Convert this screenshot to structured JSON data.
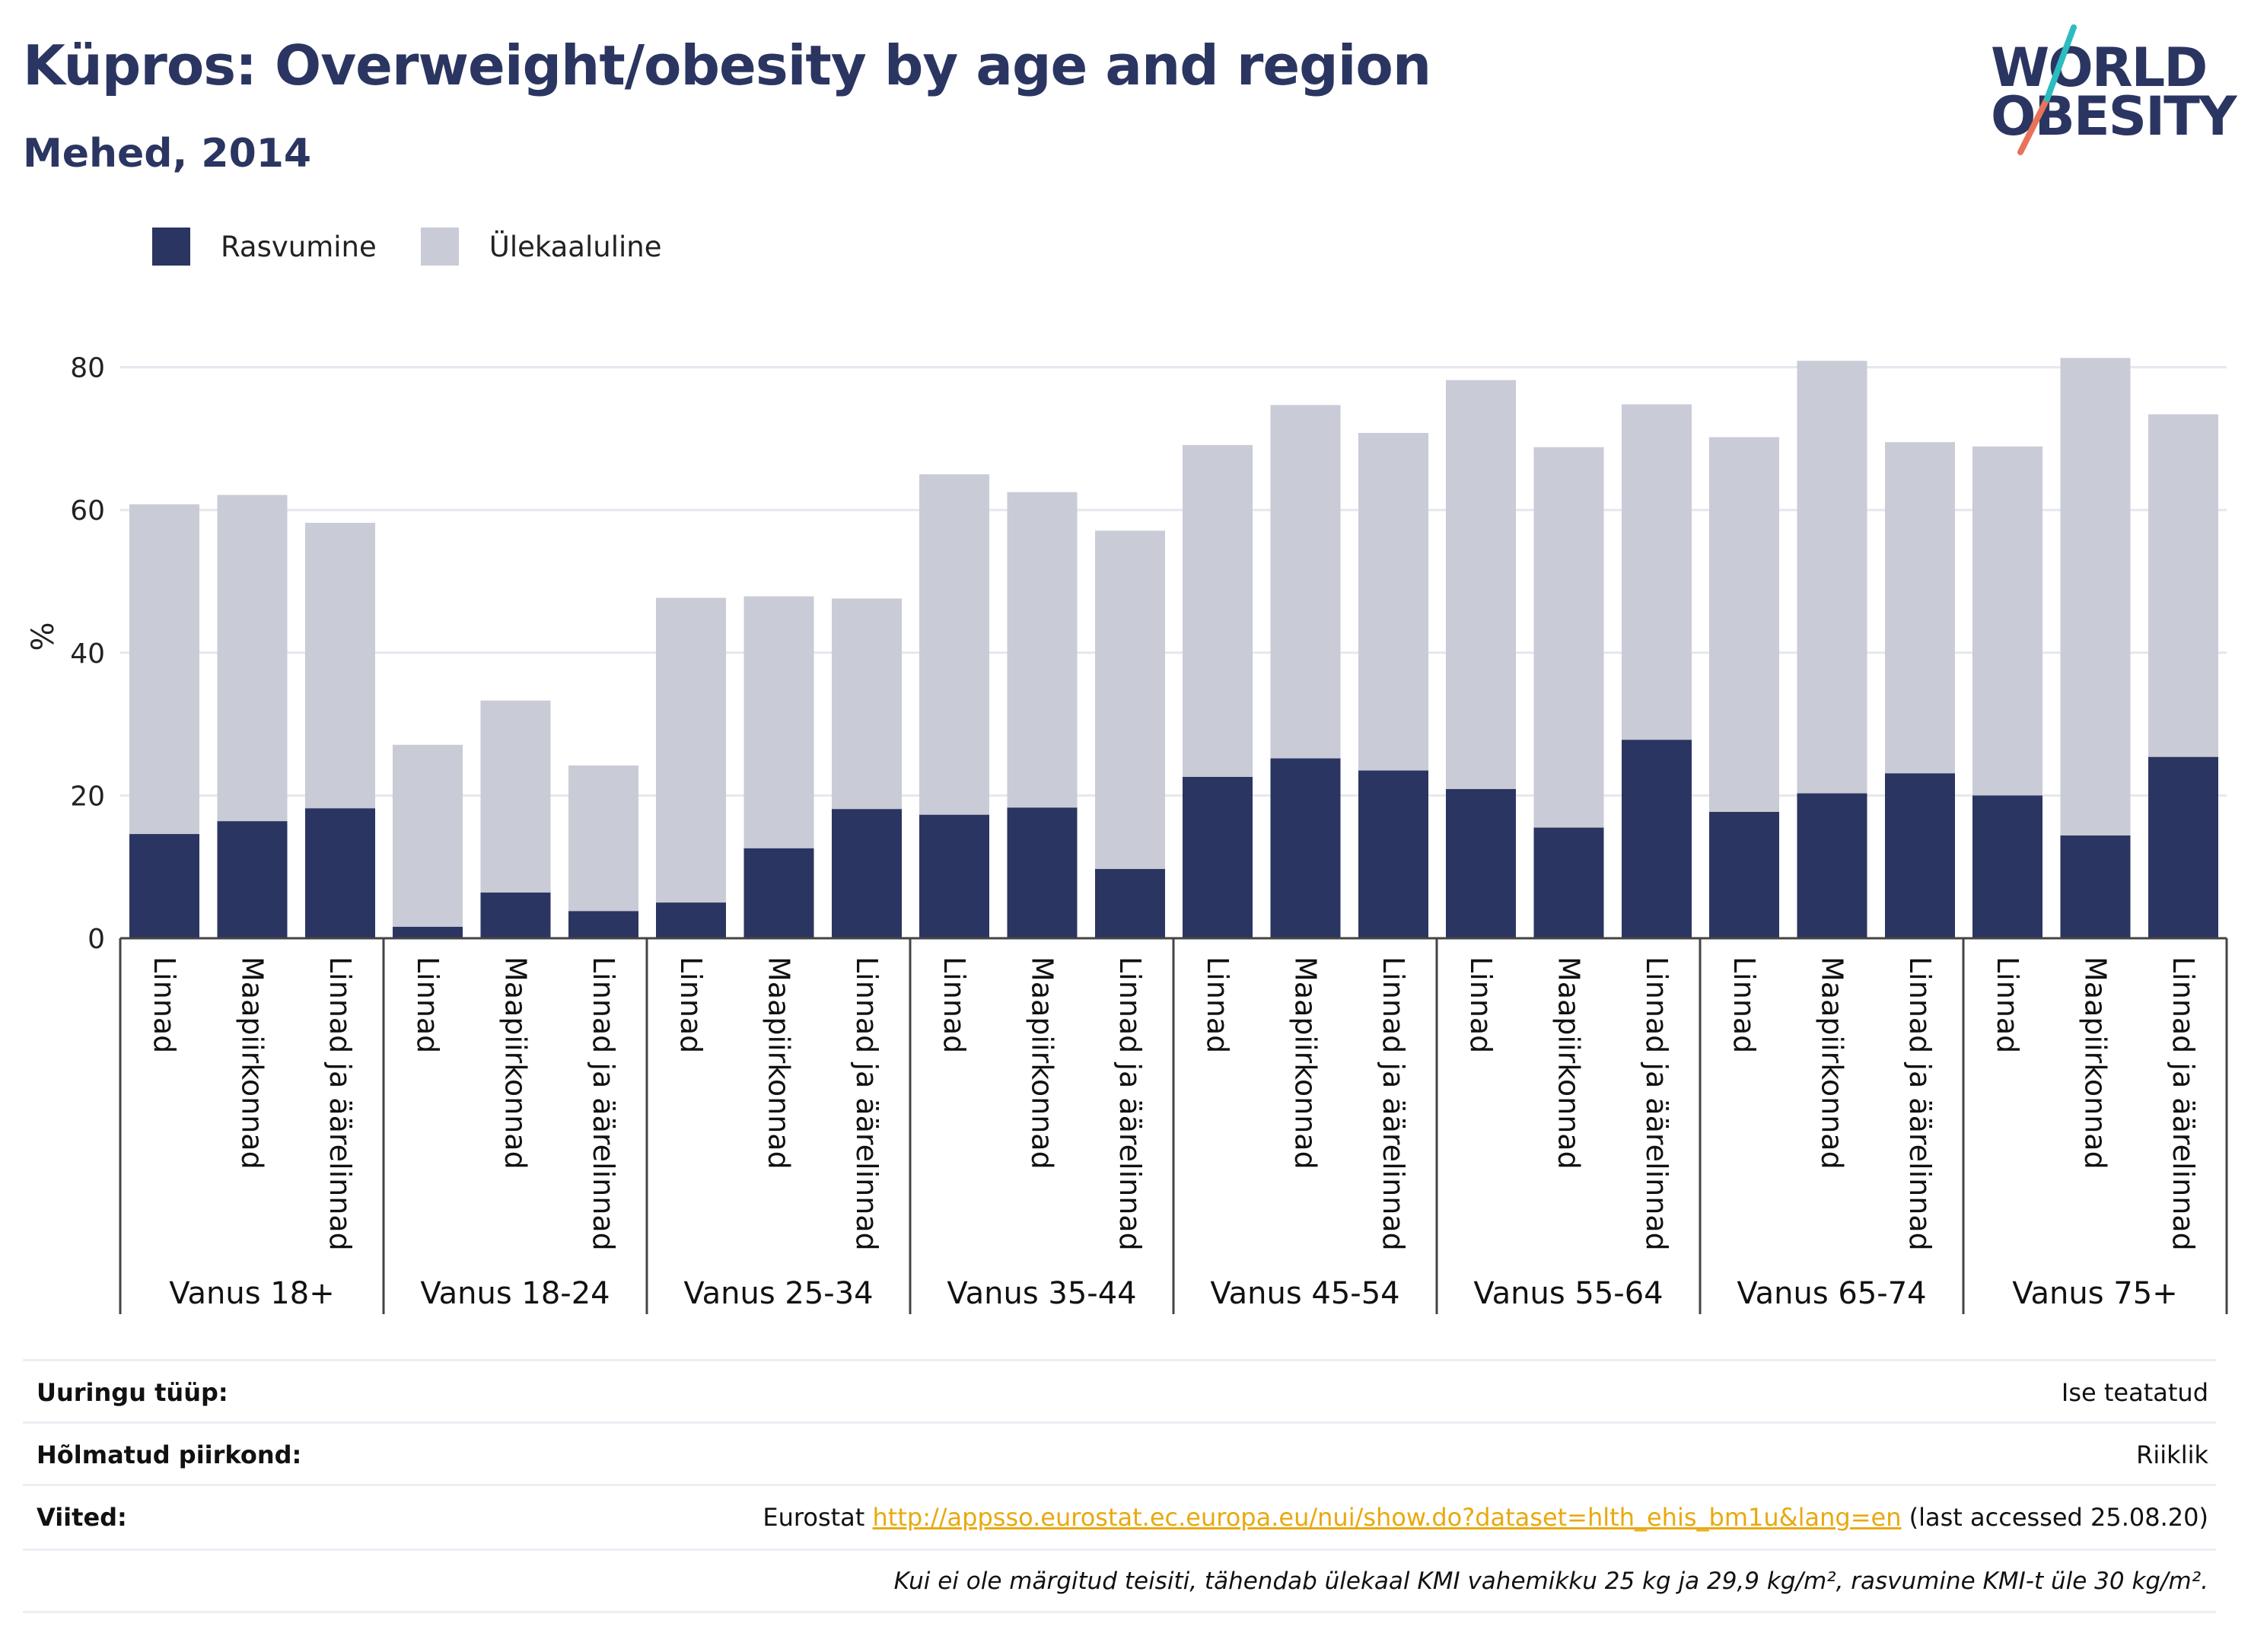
{
  "header": {
    "title": "Küpros: Overweight/obesity by age and region",
    "subtitle": "Mehed, 2014"
  },
  "logo": {
    "line1": "WORLD",
    "line2": "OBESITY",
    "colors": {
      "text": "#2b3561",
      "slash_top": "#2bbcc0",
      "slash_bottom": "#e8735a"
    }
  },
  "legend": [
    {
      "label": "Rasvumine",
      "color": "#2b3561"
    },
    {
      "label": "Ülekaaluline",
      "color": "#c9cbd6"
    }
  ],
  "chart_data": {
    "type": "bar",
    "stacked": true,
    "ylabel": "%",
    "ylim": [
      0,
      85
    ],
    "yticks": [
      0,
      20,
      40,
      60,
      80
    ],
    "grid": true,
    "legend_position": "top-left",
    "groups": [
      {
        "label": "Vanus 18+",
        "categories": [
          "Linnad",
          "Maapiirkonnad",
          "Linnad ja äärelinnad"
        ]
      },
      {
        "label": "Vanus 18-24",
        "categories": [
          "Linnad",
          "Maapiirkonnad",
          "Linnad ja äärelinnad"
        ]
      },
      {
        "label": "Vanus 25-34",
        "categories": [
          "Linnad",
          "Maapiirkonnad",
          "Linnad ja äärelinnad"
        ]
      },
      {
        "label": "Vanus 35-44",
        "categories": [
          "Linnad",
          "Maapiirkonnad",
          "Linnad ja äärelinnad"
        ]
      },
      {
        "label": "Vanus 45-54",
        "categories": [
          "Linnad",
          "Maapiirkonnad",
          "Linnad ja äärelinnad"
        ]
      },
      {
        "label": "Vanus 55-64",
        "categories": [
          "Linnad",
          "Maapiirkonnad",
          "Linnad ja äärelinnad"
        ]
      },
      {
        "label": "Vanus 65-74",
        "categories": [
          "Linnad",
          "Maapiirkonnad",
          "Linnad ja äärelinnad"
        ]
      },
      {
        "label": "Vanus 75+",
        "categories": [
          "Linnad",
          "Maapiirkonnad",
          "Linnad ja äärelinnad"
        ]
      }
    ],
    "series": [
      {
        "name": "Rasvumine",
        "color": "#2b3561",
        "values": [
          14.6,
          16.4,
          18.2,
          1.6,
          6.4,
          3.8,
          5.0,
          12.6,
          18.1,
          17.3,
          18.3,
          9.7,
          22.6,
          25.2,
          23.5,
          20.9,
          15.5,
          27.8,
          17.7,
          20.3,
          23.1,
          20.0,
          14.4,
          25.4
        ]
      },
      {
        "name": "Ülekaaluline",
        "color": "#c9cbd6",
        "values": [
          46.2,
          45.7,
          40.0,
          25.5,
          26.9,
          20.4,
          42.7,
          35.3,
          29.5,
          47.7,
          44.2,
          47.4,
          46.5,
          49.5,
          47.3,
          57.3,
          53.3,
          47.0,
          52.5,
          60.6,
          46.4,
          48.9,
          66.9,
          48.0
        ]
      }
    ]
  },
  "info": {
    "rows": [
      {
        "key": "Uuringu tüüp:",
        "value": "Ise teatatud"
      },
      {
        "key": "Hõlmatud piirkond:",
        "value": "Riiklik"
      },
      {
        "key": "Viited:",
        "value_prefix": "Eurostat ",
        "link": "http://appsso.eurostat.ec.europa.eu/nui/show.do?dataset=hlth_ehis_bm1u&lang=en",
        "value_suffix": " (last accessed 25.08.20)"
      }
    ],
    "note": "Kui ei ole märgitud teisiti, tähendab ülekaal KMI vahemikku 25 kg ja 29,9 kg/m², rasvumine KMI-t üle 30 kg/m²."
  }
}
